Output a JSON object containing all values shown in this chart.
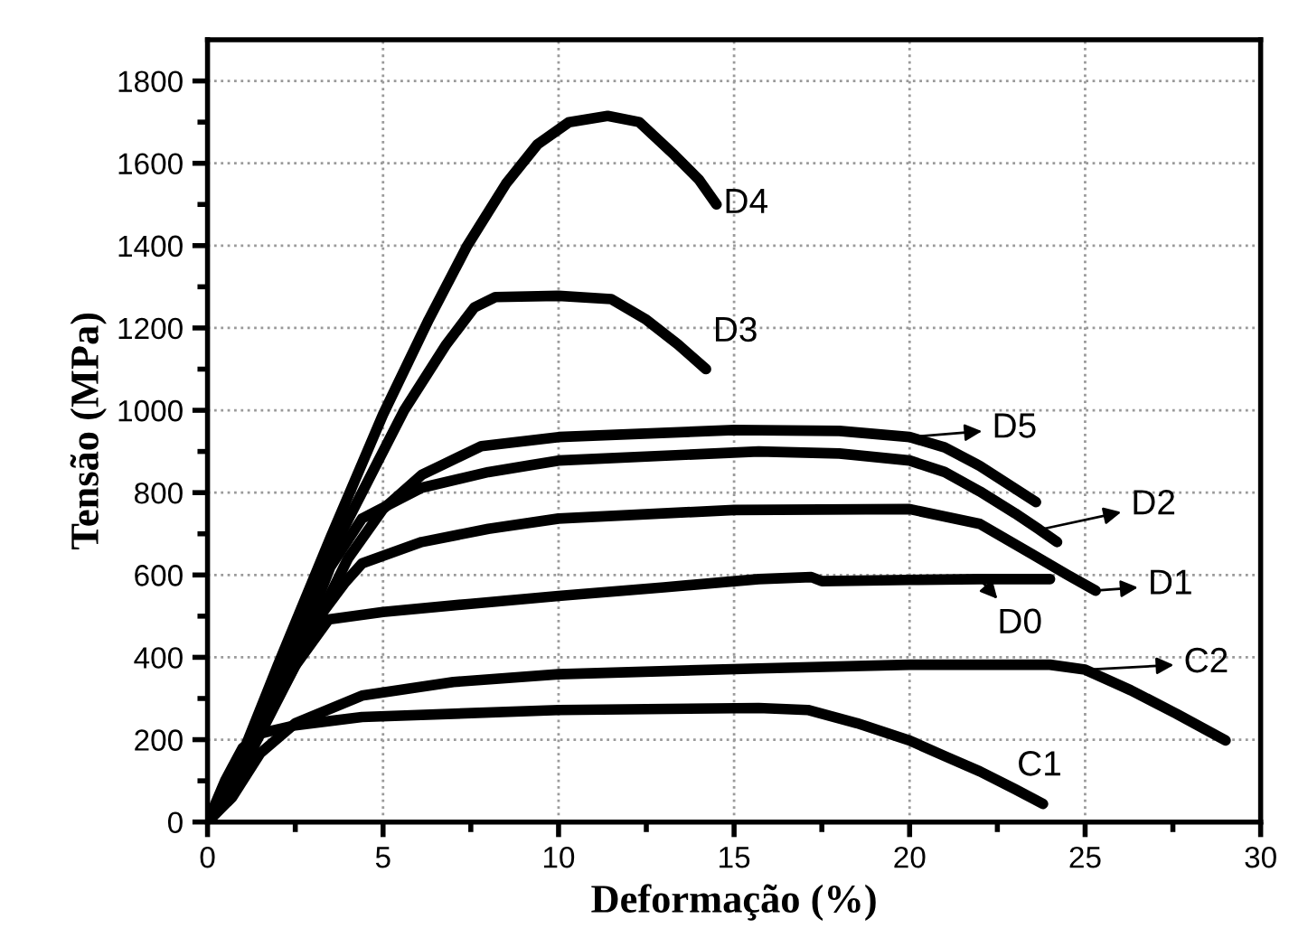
{
  "chart_data": {
    "type": "line",
    "xlabel": "Deformação (%)",
    "ylabel": "Tensão (MPa)",
    "xlim": [
      0,
      30
    ],
    "ylim": [
      0,
      1900
    ],
    "xticks": [
      0,
      {
        "value": 2.5,
        "label": null
      },
      5,
      {
        "value": 7.5,
        "label": null
      },
      10,
      {
        "value": 12.5,
        "label": null
      },
      15,
      {
        "value": 17.5,
        "label": null
      },
      20,
      {
        "value": 22.5,
        "label": null
      },
      25,
      {
        "value": 27.5,
        "label": null
      },
      30
    ],
    "yticks": [
      0,
      {
        "value": 100,
        "label": null
      },
      200,
      {
        "value": 300,
        "label": null
      },
      400,
      {
        "value": 500,
        "label": null
      },
      600,
      {
        "value": 700,
        "label": null
      },
      800,
      {
        "value": 900,
        "label": null
      },
      1000,
      {
        "value": 1100,
        "label": null
      },
      1200,
      {
        "value": 1300,
        "label": null
      },
      1400,
      {
        "value": 1500,
        "label": null
      },
      1600,
      {
        "value": 1700,
        "label": null
      },
      1800
    ],
    "grid": true,
    "legend": "right",
    "marker": "none",
    "line_style": "solid",
    "series": [
      {
        "name": "D4",
        "color": "#000000",
        "x": [
          0,
          0.5,
          2,
          3.5,
          5,
          6.3,
          7.4,
          8.5,
          9.4,
          10.3,
          11.4,
          12.3,
          13.3,
          14.0,
          14.5
        ],
        "values": [
          0,
          60,
          380,
          690,
          990,
          1220,
          1400,
          1550,
          1646,
          1700,
          1715,
          1700,
          1620,
          1560,
          1500
        ]
      },
      {
        "name": "D3",
        "color": "#000000",
        "x": [
          0,
          0.5,
          2,
          3.5,
          5.6,
          6.8,
          7.6,
          8.2,
          10,
          11.5,
          12.5,
          13.4,
          14.2
        ],
        "values": [
          0,
          55,
          350,
          650,
          1000,
          1160,
          1250,
          1275,
          1278,
          1270,
          1220,
          1160,
          1100
        ]
      },
      {
        "name": "D5",
        "color": "#000000",
        "x": [
          0,
          1,
          2.5,
          4,
          5,
          6.1,
          7.8,
          10,
          15,
          18,
          20,
          21,
          22,
          23,
          23.6
        ],
        "values": [
          0,
          130,
          380,
          640,
          760,
          843,
          913,
          935,
          952,
          950,
          935,
          910,
          865,
          810,
          777
        ]
      },
      {
        "name": "D2",
        "color": "#000000",
        "x": [
          0,
          1,
          2.5,
          3.5,
          4.4,
          6.1,
          8,
          10,
          15.7,
          18,
          20,
          21,
          22,
          23,
          23.7,
          24.2
        ],
        "values": [
          0,
          140,
          400,
          620,
          737,
          812,
          850,
          878,
          900,
          895,
          878,
          850,
          803,
          750,
          710,
          680
        ]
      },
      {
        "name": "D1",
        "color": "#000000",
        "x": [
          0,
          1,
          2.5,
          3.9,
          4.4,
          6.1,
          8,
          10,
          15,
          20,
          22,
          23.5,
          24.5,
          25.3
        ],
        "values": [
          0,
          150,
          420,
          580,
          628,
          680,
          712,
          737,
          758,
          760,
          724,
          650,
          600,
          562
        ]
      },
      {
        "name": "D0",
        "color": "#000000",
        "x": [
          0,
          1,
          2.5,
          3.45,
          5,
          7.5,
          10,
          13,
          15.7,
          17.2,
          17.5,
          20,
          22,
          24
        ],
        "values": [
          0,
          140,
          380,
          492,
          510,
          530,
          549,
          570,
          590,
          595,
          585,
          588,
          590,
          590
        ]
      },
      {
        "name": "C2",
        "color": "#000000",
        "x": [
          0,
          0.7,
          1.5,
          2.5,
          4.4,
          7,
          10,
          15.7,
          20,
          24,
          25,
          26.3,
          27.6,
          29
        ],
        "values": [
          0,
          60,
          167,
          240,
          307,
          340,
          359,
          373,
          382,
          382,
          370,
          320,
          263,
          198
        ]
      },
      {
        "name": "C1",
        "color": "#000000",
        "x": [
          0,
          0.5,
          1,
          1.5,
          2.5,
          4.4,
          10,
          15.7,
          17.1,
          18.5,
          20,
          21,
          22,
          23,
          23.8
        ],
        "values": [
          0,
          100,
          180,
          215,
          235,
          255,
          272,
          277,
          272,
          240,
          198,
          160,
          123,
          80,
          44
        ]
      }
    ]
  }
}
